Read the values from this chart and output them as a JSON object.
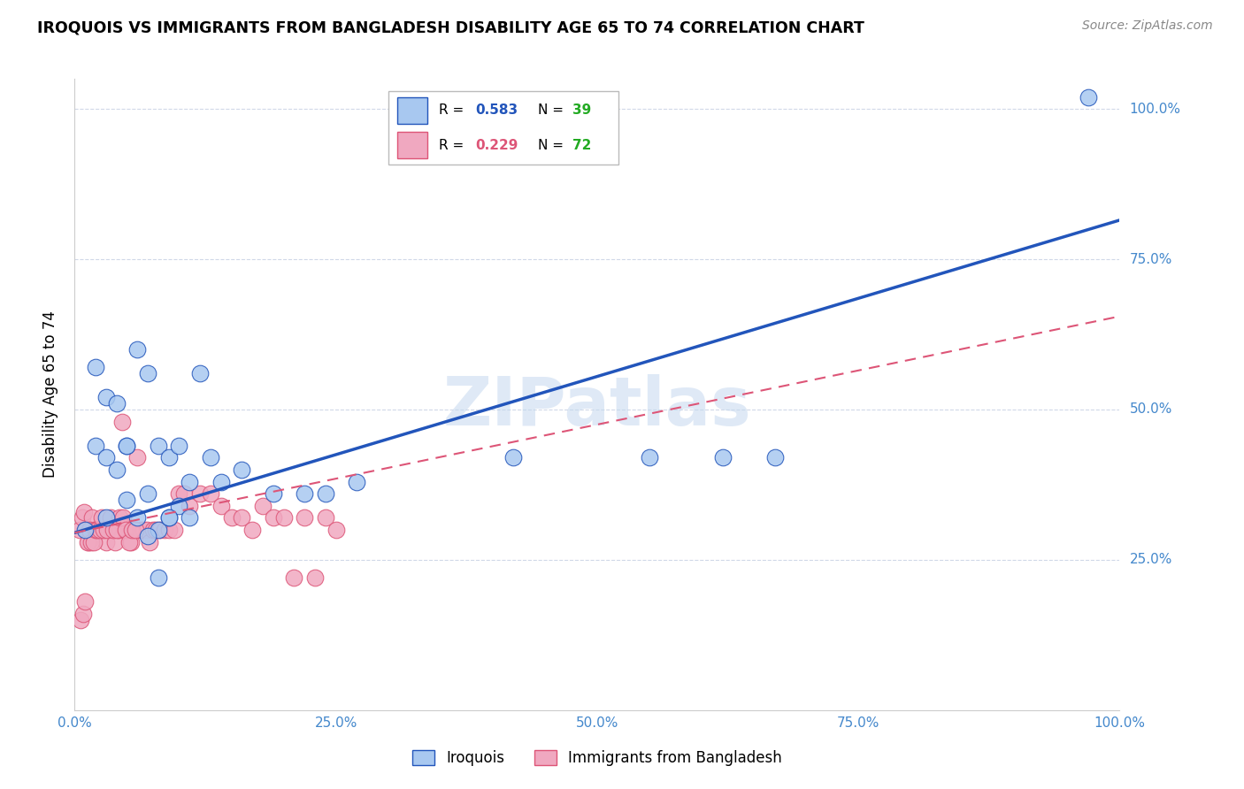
{
  "title": "IROQUOIS VS IMMIGRANTS FROM BANGLADESH DISABILITY AGE 65 TO 74 CORRELATION CHART",
  "source": "Source: ZipAtlas.com",
  "ylabel_label": "Disability Age 65 to 74",
  "legend_label1": "Iroquois",
  "legend_label2": "Immigrants from Bangladesh",
  "R1": 0.583,
  "N1": 39,
  "R2": 0.229,
  "N2": 72,
  "color1": "#a8c8f0",
  "color2": "#f0a8c0",
  "line_color1": "#2255bb",
  "line_color2": "#dd5577",
  "N_color": "#22aa22",
  "watermark": "ZIPatlas",
  "xmin": 0.0,
  "xmax": 1.0,
  "ymin": 0.0,
  "ymax": 1.05,
  "xticks": [
    0.0,
    0.25,
    0.5,
    0.75,
    1.0
  ],
  "yticks": [
    0.25,
    0.5,
    0.75,
    1.0
  ],
  "xtick_labels": [
    "0.0%",
    "25.0%",
    "50.0%",
    "75.0%",
    "100.0%"
  ],
  "ytick_labels": [
    "25.0%",
    "50.0%",
    "75.0%",
    "100.0%"
  ],
  "blue_line_x0": 0.0,
  "blue_line_y0": 0.295,
  "blue_line_x1": 1.0,
  "blue_line_y1": 0.815,
  "pink_line_x0": 0.0,
  "pink_line_y0": 0.295,
  "pink_line_x1": 1.0,
  "pink_line_y1": 0.655,
  "iroquois_x": [
    0.97,
    0.01,
    0.02,
    0.03,
    0.04,
    0.05,
    0.06,
    0.07,
    0.08,
    0.09,
    0.1,
    0.11,
    0.12,
    0.02,
    0.03,
    0.04,
    0.05,
    0.06,
    0.07,
    0.08,
    0.09,
    0.1,
    0.11,
    0.13,
    0.14,
    0.16,
    0.19,
    0.22,
    0.24,
    0.27,
    0.42,
    0.55,
    0.62,
    0.67,
    0.08,
    0.05,
    0.03,
    0.07,
    0.09
  ],
  "iroquois_y": [
    1.02,
    0.3,
    0.57,
    0.52,
    0.51,
    0.44,
    0.6,
    0.56,
    0.44,
    0.42,
    0.44,
    0.38,
    0.56,
    0.44,
    0.42,
    0.4,
    0.35,
    0.32,
    0.36,
    0.3,
    0.32,
    0.34,
    0.32,
    0.42,
    0.38,
    0.4,
    0.36,
    0.36,
    0.36,
    0.38,
    0.42,
    0.42,
    0.42,
    0.42,
    0.22,
    0.44,
    0.32,
    0.29,
    0.32
  ],
  "bangladesh_x": [
    0.005,
    0.007,
    0.009,
    0.011,
    0.013,
    0.015,
    0.017,
    0.019,
    0.021,
    0.023,
    0.025,
    0.027,
    0.03,
    0.033,
    0.036,
    0.039,
    0.042,
    0.045,
    0.048,
    0.051,
    0.054,
    0.057,
    0.06,
    0.063,
    0.066,
    0.069,
    0.072,
    0.075,
    0.078,
    0.082,
    0.086,
    0.09,
    0.095,
    0.1,
    0.105,
    0.11,
    0.12,
    0.13,
    0.14,
    0.15,
    0.16,
    0.17,
    0.18,
    0.19,
    0.2,
    0.21,
    0.22,
    0.23,
    0.24,
    0.25,
    0.006,
    0.008,
    0.01,
    0.012,
    0.014,
    0.016,
    0.018,
    0.02,
    0.022,
    0.024,
    0.026,
    0.028,
    0.031,
    0.034,
    0.037,
    0.04,
    0.043,
    0.046,
    0.049,
    0.052,
    0.055,
    0.058
  ],
  "bangladesh_y": [
    0.3,
    0.32,
    0.33,
    0.3,
    0.28,
    0.3,
    0.32,
    0.3,
    0.3,
    0.3,
    0.3,
    0.3,
    0.28,
    0.3,
    0.3,
    0.28,
    0.3,
    0.48,
    0.3,
    0.3,
    0.28,
    0.3,
    0.42,
    0.3,
    0.3,
    0.3,
    0.28,
    0.3,
    0.3,
    0.3,
    0.3,
    0.3,
    0.3,
    0.36,
    0.36,
    0.34,
    0.36,
    0.36,
    0.34,
    0.32,
    0.32,
    0.3,
    0.34,
    0.32,
    0.32,
    0.22,
    0.32,
    0.22,
    0.32,
    0.3,
    0.15,
    0.16,
    0.18,
    0.28,
    0.3,
    0.28,
    0.28,
    0.3,
    0.3,
    0.3,
    0.32,
    0.3,
    0.3,
    0.32,
    0.3,
    0.3,
    0.32,
    0.32,
    0.3,
    0.28,
    0.3,
    0.3
  ]
}
